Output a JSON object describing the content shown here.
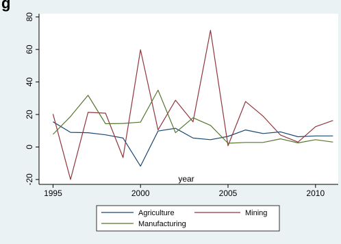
{
  "chart_data": {
    "type": "line",
    "title": "g",
    "xlabel": "year",
    "ylabel": "",
    "xlim": [
      1994.2,
      2011.3
    ],
    "ylim": [
      -23,
      82
    ],
    "x_ticks": [
      1995,
      2000,
      2005,
      2010
    ],
    "y_ticks": [
      -20,
      0,
      20,
      40,
      60,
      80
    ],
    "grid": false,
    "legend_position": "bottom",
    "x": [
      1995,
      1996,
      1997,
      1998,
      1999,
      2000,
      2001,
      2002,
      2003,
      2004,
      2005,
      2006,
      2007,
      2008,
      2009,
      2010,
      2011
    ],
    "series": [
      {
        "name": "Agriculture",
        "color": "#1a476f",
        "values": [
          15.5,
          9,
          8.8,
          7.5,
          5.5,
          -11.8,
          9.8,
          11.5,
          5.5,
          4.5,
          6.5,
          10.5,
          8.3,
          9.3,
          6.3,
          6.8,
          6.8
        ]
      },
      {
        "name": "Mining",
        "color": "#90353b",
        "values": [
          20.3,
          -20,
          21.3,
          20.8,
          -6.5,
          59.8,
          10.5,
          28.8,
          15.5,
          71.8,
          0.8,
          28,
          19,
          7.3,
          3,
          12.5,
          16.3
        ]
      },
      {
        "name": "Manufacturing",
        "color": "#55752f",
        "values": [
          7.8,
          18.8,
          31.8,
          14.3,
          14.5,
          15.3,
          35,
          8.8,
          18,
          13.3,
          2.3,
          2.8,
          2.8,
          5,
          2.5,
          4.5,
          3
        ]
      }
    ]
  }
}
